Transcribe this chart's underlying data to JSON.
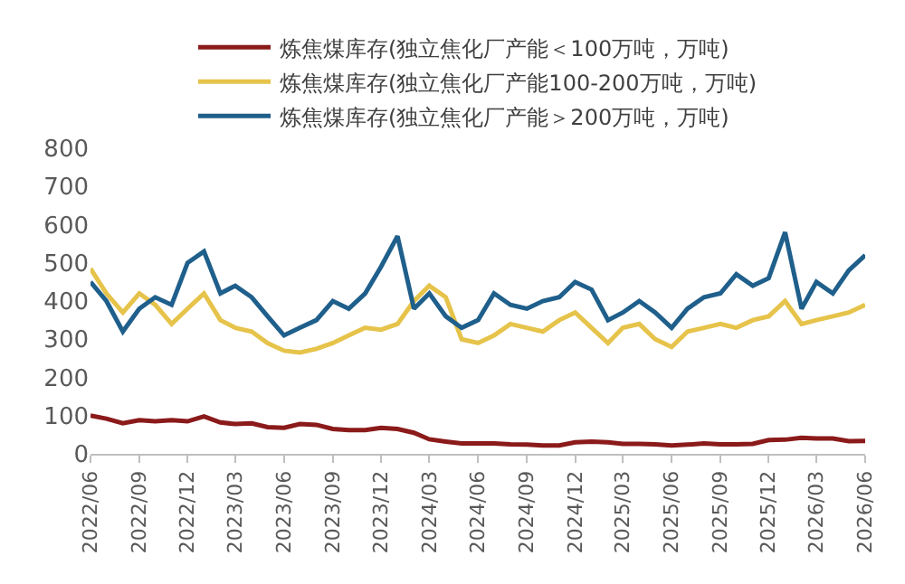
{
  "chart_data": {
    "type": "line",
    "x": [
      "2022-06",
      "2022-07",
      "2022-08",
      "2022-09",
      "2022-10",
      "2022-11",
      "2022-12",
      "2023-01",
      "2023-02",
      "2023-03",
      "2023-04",
      "2023-05",
      "2023-06",
      "2023-07",
      "2023-08",
      "2023-09",
      "2023-10",
      "2023-11",
      "2023-12",
      "2024-01",
      "2024-02",
      "2024-03",
      "2024-04",
      "2024-05",
      "2024-06",
      "2024-07",
      "2024-08",
      "2024-09",
      "2024-10",
      "2024-11",
      "2024-12",
      "2025-01",
      "2025-02",
      "2025-03",
      "2025-04",
      "2025-05",
      "2025-06",
      "2025-07",
      "2025-08",
      "2025-09",
      "2025-10",
      "2025-11",
      "2025-12",
      "2026-01",
      "2026-02",
      "2026-03",
      "2026-04",
      "2026-05",
      "2026-06"
    ],
    "series": [
      {
        "name": "炼焦煤库存(独立焦化厂产能＜100万吨，万吨)",
        "color": "#8b1a1a",
        "values": [
          100,
          92,
          80,
          88,
          85,
          88,
          85,
          98,
          82,
          78,
          80,
          70,
          68,
          78,
          76,
          65,
          62,
          62,
          68,
          65,
          55,
          38,
          32,
          27,
          27,
          27,
          25,
          24,
          22,
          22,
          30,
          32,
          30,
          26,
          26,
          25,
          22,
          24,
          27,
          25,
          25,
          26,
          36,
          37,
          42,
          40,
          40,
          33,
          34
        ]
      },
      {
        "name": "炼焦煤库存(独立焦化厂产能100-200万吨，万吨)",
        "color": "#e6c34a",
        "values": [
          485,
          420,
          370,
          420,
          390,
          340,
          380,
          420,
          350,
          330,
          320,
          290,
          270,
          265,
          275,
          290,
          310,
          330,
          325,
          340,
          400,
          440,
          410,
          300,
          290,
          310,
          340,
          330,
          320,
          350,
          370,
          330,
          290,
          330,
          340,
          300,
          280,
          320,
          330,
          340,
          330,
          350,
          360,
          400,
          340,
          350,
          360,
          370,
          390
        ]
      },
      {
        "name": "炼焦煤库存(独立焦化厂产能＞200万吨，万吨)",
        "color": "#1f5f8b",
        "values": [
          450,
          400,
          320,
          380,
          410,
          390,
          500,
          530,
          420,
          440,
          410,
          360,
          310,
          330,
          350,
          400,
          380,
          420,
          490,
          570,
          380,
          420,
          360,
          330,
          350,
          420,
          390,
          380,
          400,
          410,
          450,
          430,
          350,
          370,
          400,
          370,
          330,
          380,
          410,
          420,
          470,
          440,
          460,
          580,
          380,
          450,
          420,
          480,
          520
        ]
      }
    ],
    "ylim": [
      0,
      800
    ],
    "yticks": [
      0,
      100,
      200,
      300,
      400,
      500,
      600,
      700,
      800
    ],
    "xlim": [
      "2022-06",
      "2026-06"
    ],
    "xticks": [
      {
        "value": "2022-06",
        "label": "2022/06"
      },
      {
        "value": "2022-09",
        "label": "2022/09"
      },
      {
        "value": "2022-12",
        "label": "2022/12"
      },
      {
        "value": "2023-03",
        "label": "2023/03"
      },
      {
        "value": "2023-06",
        "label": "2023/06"
      },
      {
        "value": "2023-09",
        "label": "2023/09"
      },
      {
        "value": "2023-12",
        "label": "2023/12"
      },
      {
        "value": "2024-03",
        "label": "2024/03"
      },
      {
        "value": "2024-06",
        "label": "2024/06"
      },
      {
        "value": "2024-09",
        "label": "2024/09"
      },
      {
        "value": "2024-12",
        "label": "2024/12"
      },
      {
        "value": "2025-03",
        "label": "2025/03"
      },
      {
        "value": "2025-06",
        "label": "2025/06"
      },
      {
        "value": "2025-09",
        "label": "2025/09"
      },
      {
        "value": "2025-12",
        "label": "2025/12"
      },
      {
        "value": "2026-03",
        "label": "2026/03"
      },
      {
        "value": "2026-06",
        "label": "2026/06"
      }
    ],
    "grid": false,
    "legend": "top",
    "marker": "none",
    "line_style": "solid"
  }
}
